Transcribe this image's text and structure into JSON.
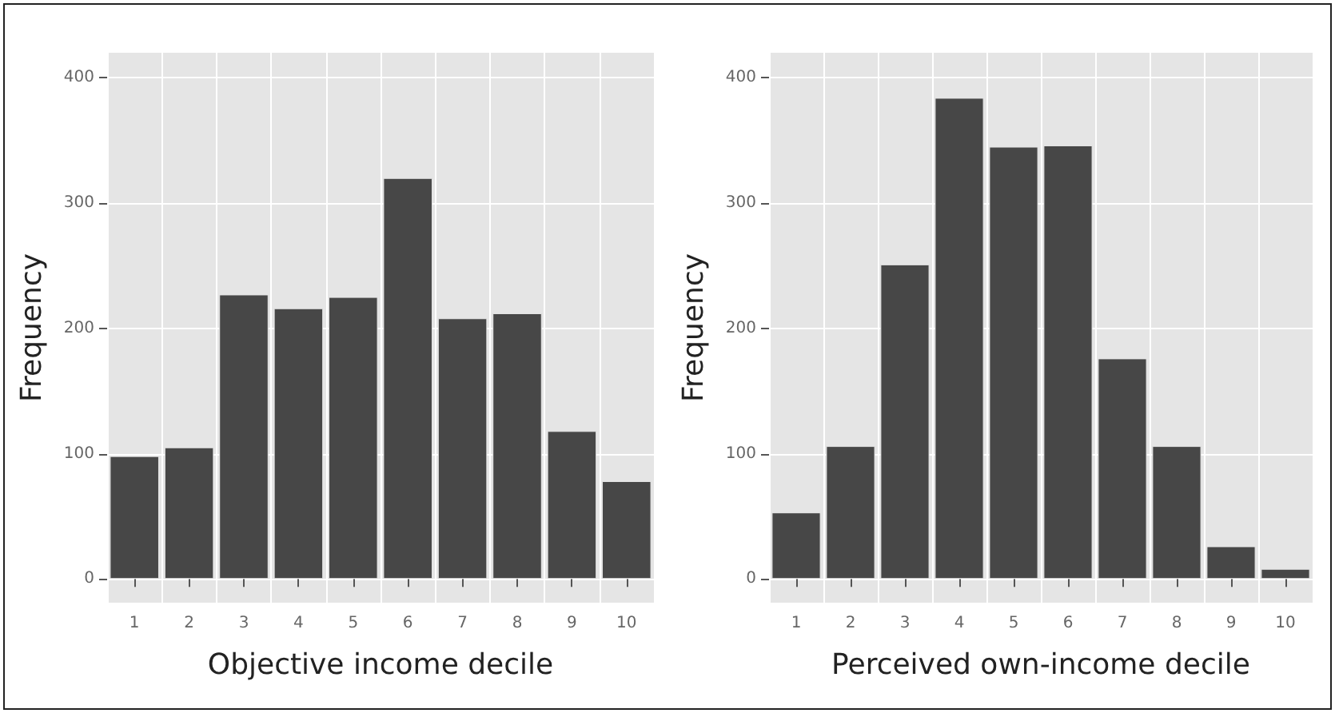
{
  "chart_data": [
    {
      "type": "bar",
      "xlabel": "Objective income decile",
      "ylabel": "Frequency",
      "categories": [
        "1",
        "2",
        "3",
        "4",
        "5",
        "6",
        "7",
        "8",
        "9",
        "10"
      ],
      "values": [
        98,
        105,
        227,
        216,
        225,
        320,
        208,
        212,
        118,
        78
      ],
      "color": "#474747",
      "ylim": [
        -19,
        420
      ],
      "yticks": [
        0,
        100,
        200,
        300,
        400
      ],
      "grid": true
    },
    {
      "type": "bar",
      "xlabel": "Perceived own-income decile",
      "ylabel": "Frequency",
      "categories": [
        "1",
        "2",
        "3",
        "4",
        "5",
        "6",
        "7",
        "8",
        "9",
        "10"
      ],
      "values": [
        53,
        106,
        251,
        384,
        345,
        346,
        176,
        106,
        26,
        8
      ],
      "color": "#474747",
      "ylim": [
        -19,
        420
      ],
      "yticks": [
        0,
        100,
        200,
        300,
        400
      ],
      "grid": true
    }
  ]
}
